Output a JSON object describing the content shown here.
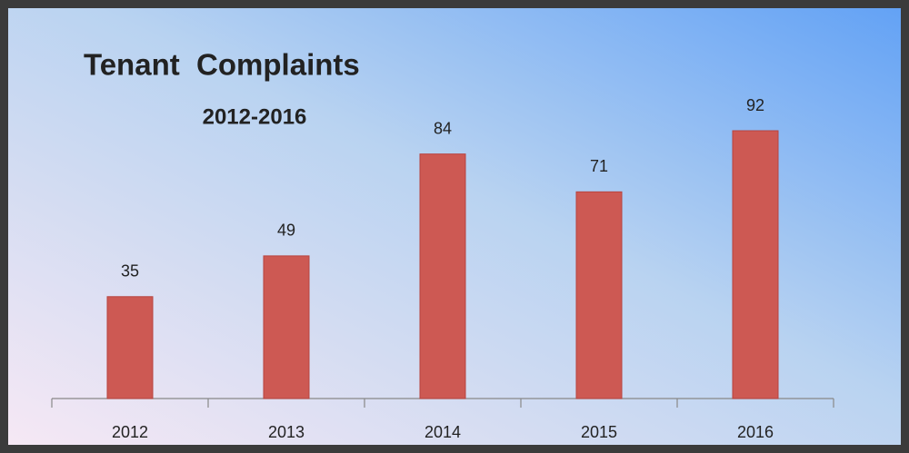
{
  "chart_data": {
    "type": "bar",
    "title": "Tenant  Complaints",
    "subtitle": "2012-2016",
    "categories": [
      "2012",
      "2013",
      "2014",
      "2015",
      "2016"
    ],
    "values": [
      35,
      49,
      84,
      71,
      92
    ],
    "color": "#cd5953"
  }
}
